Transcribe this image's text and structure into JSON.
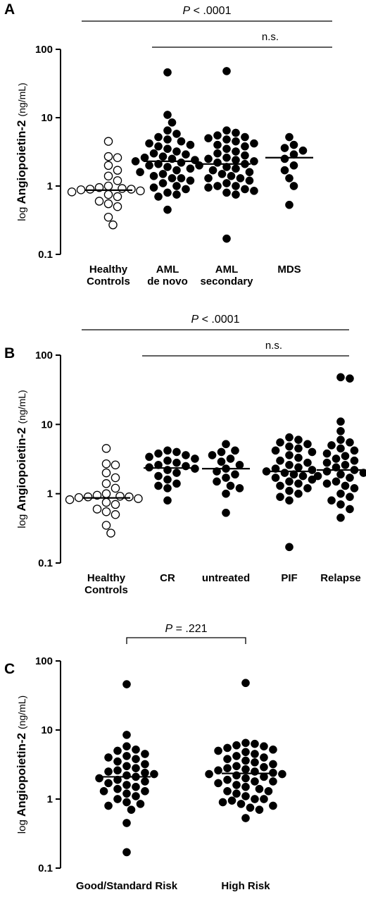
{
  "chart_data": [
    {
      "type": "scatter",
      "panel": "A",
      "ylabel": {
        "prefix": "log ",
        "main": "Angiopoietin-2",
        "unit": "(ng/mL)"
      },
      "yscale": "log",
      "ylim": [
        0.1,
        100
      ],
      "yticks": [
        "0.1",
        "1",
        "10",
        "100"
      ],
      "categories": [
        {
          "name": "Healthy Controls",
          "lines": [
            "Healthy",
            "Controls"
          ],
          "filled": false,
          "median": 0.87,
          "values": [
            4.5,
            2.7,
            2.6,
            2.0,
            1.7,
            1.4,
            1.2,
            1.0,
            0.95,
            0.92,
            0.9,
            0.9,
            0.88,
            0.85,
            0.82,
            0.75,
            0.7,
            0.6,
            0.55,
            0.5,
            0.35,
            0.27
          ]
        },
        {
          "name": "AML de novo",
          "lines": [
            "AML",
            "de novo"
          ],
          "filled": true,
          "median": 2.3,
          "values": [
            46,
            11,
            8.5,
            6.5,
            5.8,
            5.2,
            4.8,
            4.5,
            4.2,
            4.0,
            3.8,
            3.5,
            3.2,
            3.0,
            2.9,
            2.7,
            2.6,
            2.5,
            2.4,
            2.3,
            2.2,
            2.1,
            2.0,
            1.9,
            1.8,
            1.7,
            1.6,
            1.5,
            1.4,
            1.3,
            1.3,
            1.2,
            1.1,
            1.0,
            0.95,
            0.9,
            0.8,
            0.75,
            0.7,
            0.45
          ]
        },
        {
          "name": "AML secondary",
          "lines": [
            "AML",
            "secondary"
          ],
          "filled": true,
          "median": 2.1,
          "values": [
            48,
            6.5,
            6.0,
            5.5,
            5.2,
            5.0,
            4.8,
            4.5,
            4.2,
            4.0,
            3.8,
            3.5,
            3.2,
            3.0,
            2.8,
            2.6,
            2.5,
            2.4,
            2.3,
            2.2,
            2.1,
            2.0,
            1.9,
            1.8,
            1.7,
            1.6,
            1.5,
            1.4,
            1.3,
            1.3,
            1.2,
            1.1,
            1.0,
            1.0,
            0.95,
            0.9,
            0.85,
            0.8,
            0.75,
            0.17
          ]
        },
        {
          "name": "MDS",
          "lines": [
            "MDS"
          ],
          "filled": true,
          "median": 2.6,
          "values": [
            5.2,
            4.0,
            3.6,
            3.3,
            2.9,
            2.5,
            2.0,
            1.7,
            1.3,
            1.0,
            0.53
          ]
        }
      ],
      "brackets": [
        {
          "from": 0,
          "to": 3,
          "label_italic": "P",
          "label_rest": " < .0001",
          "kind": "line"
        },
        {
          "from": 1,
          "to": 3,
          "label": "n.s.",
          "kind": "line"
        }
      ]
    },
    {
      "type": "scatter",
      "panel": "B",
      "ylabel": {
        "prefix": "log ",
        "main": "Angiopoietin-2",
        "unit": "(ng/mL)"
      },
      "yscale": "log",
      "ylim": [
        0.1,
        100
      ],
      "yticks": [
        "0.1",
        "1",
        "10",
        "100"
      ],
      "categories": [
        {
          "name": "Healthy Controls",
          "lines": [
            "Healthy",
            "Controls"
          ],
          "filled": false,
          "median": 0.87,
          "values": [
            4.5,
            2.7,
            2.6,
            2.0,
            1.7,
            1.4,
            1.2,
            1.0,
            0.95,
            0.92,
            0.9,
            0.9,
            0.88,
            0.85,
            0.82,
            0.75,
            0.7,
            0.6,
            0.55,
            0.5,
            0.35,
            0.27
          ]
        },
        {
          "name": "CR",
          "lines": [
            "CR"
          ],
          "filled": true,
          "median": 2.35,
          "values": [
            4.2,
            4.0,
            3.8,
            3.6,
            3.4,
            3.2,
            3.0,
            2.8,
            2.6,
            2.5,
            2.4,
            2.3,
            2.2,
            2.0,
            1.8,
            1.6,
            1.4,
            1.3,
            1.2,
            0.8
          ]
        },
        {
          "name": "untreated",
          "lines": [
            "untreated"
          ],
          "filled": true,
          "median": 2.3,
          "values": [
            5.2,
            4.2,
            4.0,
            3.6,
            3.2,
            2.9,
            2.6,
            2.3,
            2.1,
            1.9,
            1.7,
            1.5,
            1.3,
            1.2,
            1.0,
            0.53
          ]
        },
        {
          "name": "PIF",
          "lines": [
            "PIF"
          ],
          "filled": true,
          "median": 2.1,
          "values": [
            6.5,
            6.0,
            5.5,
            5.2,
            4.8,
            4.5,
            4.2,
            4.0,
            3.6,
            3.3,
            3.0,
            2.8,
            2.6,
            2.4,
            2.3,
            2.2,
            2.1,
            2.0,
            1.9,
            1.8,
            1.7,
            1.6,
            1.5,
            1.4,
            1.3,
            1.2,
            1.1,
            1.0,
            0.9,
            0.8,
            0.17
          ]
        },
        {
          "name": "Relapse",
          "lines": [
            "Relapse"
          ],
          "filled": true,
          "median": 2.2,
          "values": [
            48,
            46,
            11,
            8.0,
            6.0,
            5.5,
            5.0,
            4.5,
            4.2,
            3.8,
            3.5,
            3.2,
            3.0,
            2.8,
            2.6,
            2.4,
            2.2,
            2.1,
            2.0,
            1.9,
            1.8,
            1.7,
            1.5,
            1.4,
            1.3,
            1.2,
            1.0,
            0.9,
            0.8,
            0.7,
            0.6,
            0.45
          ]
        }
      ],
      "brackets": [
        {
          "from": 0,
          "to": 4,
          "label_italic": "P",
          "label_rest": " < .0001",
          "kind": "line"
        },
        {
          "from": 1,
          "to": 4,
          "label": "n.s.",
          "kind": "line"
        }
      ]
    },
    {
      "type": "scatter",
      "panel": "C",
      "ylabel": {
        "prefix": "log ",
        "main": "Angiopoietin-2",
        "unit": "(ng/mL)"
      },
      "yscale": "log",
      "ylim": [
        0.1,
        100
      ],
      "yticks": [
        "0.1",
        "1",
        "10",
        "100"
      ],
      "categories": [
        {
          "name": "Good/Standard Risk",
          "lines": [
            "Good/Standard Risk"
          ],
          "filled": true,
          "median": 2.1,
          "values": [
            46,
            8.5,
            5.8,
            5.2,
            5.0,
            4.5,
            4.2,
            4.0,
            3.8,
            3.5,
            3.2,
            3.0,
            2.8,
            2.6,
            2.5,
            2.4,
            2.3,
            2.2,
            2.1,
            2.0,
            1.9,
            1.8,
            1.7,
            1.6,
            1.5,
            1.4,
            1.3,
            1.3,
            1.2,
            1.1,
            1.0,
            0.9,
            0.85,
            0.8,
            0.7,
            0.45,
            0.17
          ]
        },
        {
          "name": "High Risk",
          "lines": [
            "High Risk"
          ],
          "filled": true,
          "median": 2.35,
          "values": [
            48,
            6.5,
            6.3,
            6.0,
            5.8,
            5.5,
            5.2,
            5.0,
            4.8,
            4.5,
            4.2,
            4.0,
            3.8,
            3.6,
            3.4,
            3.2,
            3.0,
            2.9,
            2.8,
            2.7,
            2.6,
            2.5,
            2.4,
            2.3,
            2.3,
            2.2,
            2.1,
            2.0,
            1.9,
            1.8,
            1.8,
            1.7,
            1.6,
            1.5,
            1.4,
            1.3,
            1.3,
            1.2,
            1.1,
            1.0,
            1.0,
            0.95,
            0.9,
            0.85,
            0.8,
            0.75,
            0.7,
            0.53
          ]
        }
      ],
      "brackets": [
        {
          "from": 0,
          "to": 1,
          "label_italic": "P",
          "label_rest": " = .221",
          "kind": "bracket"
        }
      ]
    }
  ]
}
